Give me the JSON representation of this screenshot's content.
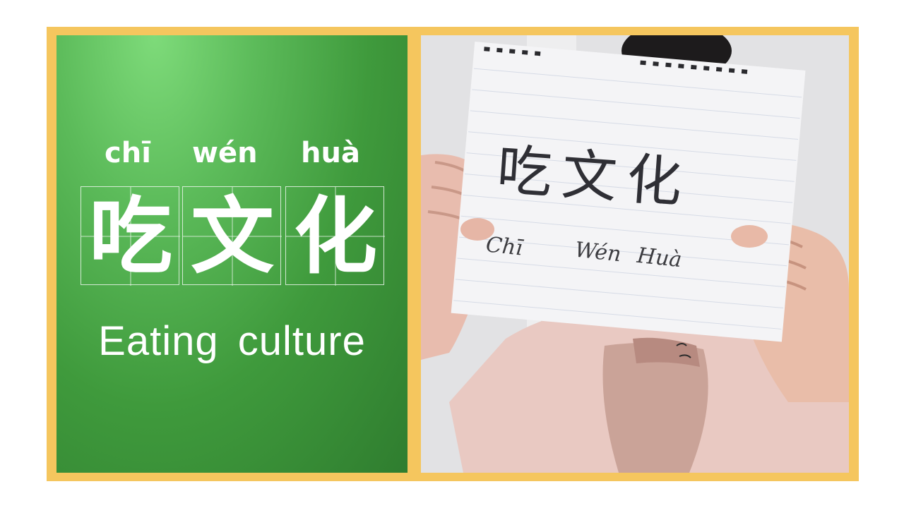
{
  "lesson": {
    "pinyin": [
      "chī",
      "wén",
      "huà"
    ],
    "characters": [
      "吃",
      "文",
      "化"
    ],
    "english": "Eating culture"
  },
  "photo": {
    "sign_characters": "吃文化",
    "sign_pinyin": [
      "Chī",
      "Wén",
      "Huà"
    ]
  },
  "colors": {
    "border": "#f5c65e",
    "panel_green": "#4aa846",
    "text": "#ffffff"
  }
}
